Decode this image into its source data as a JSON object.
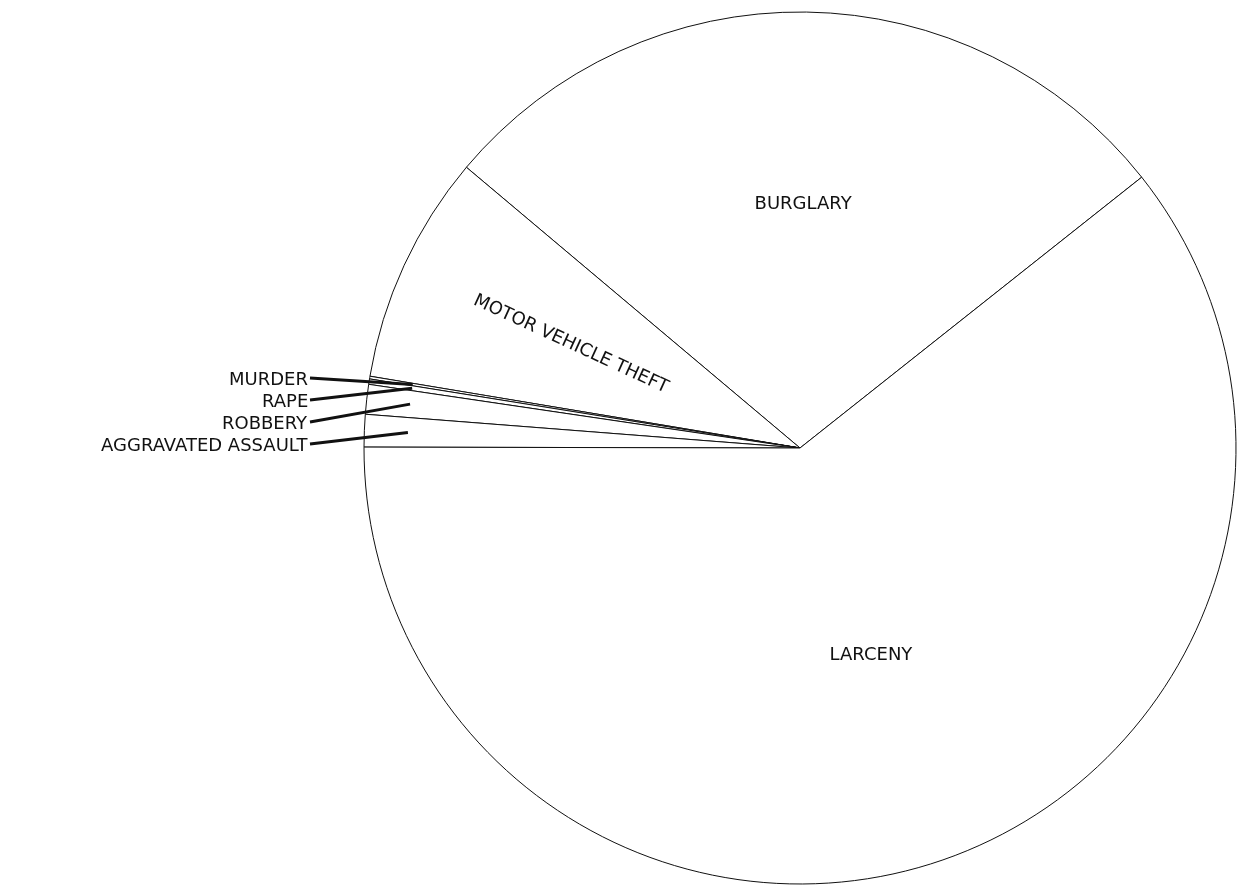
{
  "chart_data": {
    "type": "pie",
    "categories": [
      "BURGLARY",
      "MOTOR VEHICLE THEFT",
      "MURDER",
      "RAPE",
      "ROBBERY",
      "AGGRAVATED ASSAULT",
      "LARCENY"
    ],
    "values": [
      28.2,
      8.5,
      0.1,
      0.2,
      1.1,
      1.2,
      60.7
    ],
    "colors": [
      "#ffffff",
      "#ffffff",
      "#ffffff",
      "#ffffff",
      "#ffffff",
      "#ffffff",
      "#ffffff"
    ]
  }
}
